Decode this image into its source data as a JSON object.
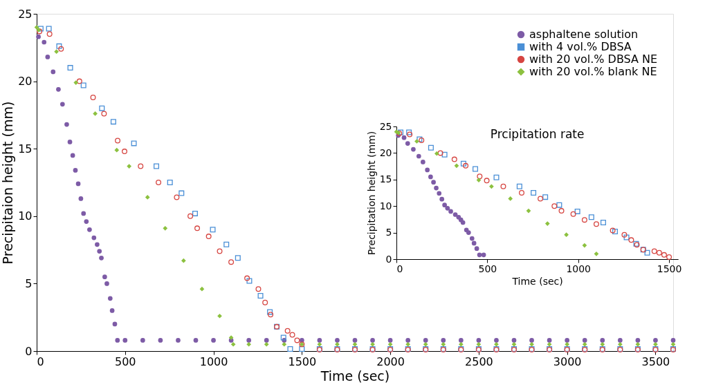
{
  "chart_data": [
    {
      "type": "scatter",
      "xlabel": "Time (sec)",
      "ylabel": "Precipitaion height (mm)",
      "xlim": [
        0,
        3600
      ],
      "ylim": [
        0,
        25
      ],
      "xticks": [
        0,
        500,
        1000,
        1500,
        2000,
        2500,
        3000,
        3500
      ],
      "yticks": [
        0,
        5,
        10,
        15,
        20,
        25
      ],
      "legend": "top right",
      "grid": false,
      "series": [
        {
          "name": "asphaltene solution",
          "color": "#7d5ba6",
          "marker": "circle",
          "x": [
            10,
            42,
            62,
            93,
            123,
            146,
            170,
            188,
            204,
            219,
            235,
            250,
            265,
            281,
            299,
            324,
            342,
            355,
            366,
            385,
            397,
            416,
            427,
            442,
            457,
            500,
            600,
            700,
            800,
            900,
            1000,
            1100,
            1200,
            1300,
            1400,
            1500,
            1600,
            1700,
            1800,
            1900,
            2000,
            2100,
            2200,
            2300,
            2400,
            2500,
            2600,
            2700,
            2800,
            2900,
            3000,
            3100,
            3200,
            3300,
            3400,
            3500,
            3600
          ],
          "values": [
            23.3,
            22.9,
            21.8,
            20.7,
            19.4,
            18.3,
            16.8,
            15.5,
            14.5,
            13.4,
            12.4,
            11.3,
            10.2,
            9.6,
            9.0,
            8.4,
            7.9,
            7.4,
            6.9,
            5.5,
            5.0,
            3.9,
            3.0,
            2.0,
            0.8,
            0.8,
            0.8,
            0.8,
            0.8,
            0.8,
            0.8,
            0.8,
            0.8,
            0.8,
            0.8,
            0.8,
            0.8,
            0.8,
            0.8,
            0.8,
            0.8,
            0.8,
            0.8,
            0.8,
            0.8,
            0.8,
            0.8,
            0.8,
            0.8,
            0.8,
            0.8,
            0.8,
            0.8,
            0.8,
            0.8,
            0.8,
            0.8
          ]
        },
        {
          "name": "with 4 vol.% DBSA",
          "color": "#4a8fd6",
          "marker": "square",
          "x": [
            23,
            69,
            127,
            190,
            265,
            369,
            434,
            550,
            677,
            754,
            819,
            896,
            996,
            1073,
            1138,
            1203,
            1266,
            1319,
            1358,
            1396,
            1434,
            1500,
            1600,
            1700,
            1800,
            1900,
            2000,
            2100,
            2200,
            2300,
            2400,
            2500,
            2600,
            2700,
            2800,
            2900,
            3000,
            3100,
            3200,
            3300,
            3400,
            3500,
            3600
          ],
          "values": [
            23.9,
            23.9,
            22.6,
            21.0,
            19.7,
            18.0,
            17.0,
            15.4,
            13.7,
            12.5,
            11.7,
            10.2,
            9.0,
            7.9,
            6.9,
            5.2,
            4.1,
            2.9,
            1.8,
            1.0,
            0.15,
            0.15,
            0.15,
            0.15,
            0.15,
            0.15,
            0.15,
            0.15,
            0.15,
            0.15,
            0.15,
            0.15,
            0.15,
            0.15,
            0.15,
            0.15,
            0.15,
            0.15,
            0.15,
            0.15,
            0.15,
            0.15,
            0.15
          ]
        },
        {
          "name": "with 20 vol.% DBSA NE",
          "color": "#d64541",
          "marker": "circle",
          "x": [
            16,
            73,
            138,
            242,
            319,
            381,
            458,
            497,
            588,
            689,
            792,
            869,
            908,
            973,
            1035,
            1100,
            1190,
            1254,
            1292,
            1323,
            1358,
            1419,
            1446,
            1473,
            1500,
            1600,
            1700,
            1800,
            1900,
            2000,
            2100,
            2200,
            2300,
            2400,
            2500,
            2600,
            2700,
            2800,
            2900,
            3000,
            3100,
            3200,
            3300,
            3400,
            3500,
            3600
          ],
          "values": [
            23.7,
            23.5,
            22.4,
            20.0,
            18.8,
            17.6,
            15.6,
            14.8,
            13.7,
            12.5,
            11.4,
            10.0,
            9.1,
            8.5,
            7.4,
            6.6,
            5.4,
            4.6,
            3.6,
            2.7,
            1.8,
            1.5,
            1.2,
            0.8,
            0.5,
            0.1,
            0.1,
            0.1,
            0.1,
            0.1,
            0.1,
            0.1,
            0.1,
            0.1,
            0.1,
            0.1,
            0.1,
            0.1,
            0.1,
            0.1,
            0.1,
            0.1,
            0.1,
            0.1,
            0.1,
            0.1
          ]
        },
        {
          "name": "with 20 vol.% blank NE",
          "color": "#8cc13f",
          "marker": "diamond",
          "x": [
            0,
            11,
            112,
            222,
            331,
            453,
            523,
            627,
            727,
            831,
            935,
            1035,
            1100,
            1112,
            1200,
            1300,
            1400,
            1500,
            1600,
            1700,
            1800,
            1900,
            2000,
            2100,
            2200,
            2300,
            2400,
            2500,
            2600,
            2700,
            2800,
            2900,
            3000,
            3100,
            3200,
            3300,
            3400,
            3500,
            3600
          ],
          "values": [
            24.0,
            23.8,
            22.2,
            19.9,
            17.6,
            14.9,
            13.7,
            11.4,
            9.1,
            6.7,
            4.6,
            2.6,
            1.0,
            0.5,
            0.5,
            0.5,
            0.5,
            0.5,
            0.5,
            0.5,
            0.5,
            0.5,
            0.5,
            0.5,
            0.5,
            0.5,
            0.5,
            0.5,
            0.5,
            0.5,
            0.5,
            0.5,
            0.5,
            0.5,
            0.5,
            0.5,
            0.5,
            0.5,
            0.5
          ]
        }
      ]
    },
    {
      "type": "scatter",
      "title": "Prcipitation rate",
      "xlabel": "Time (sec)",
      "ylabel": "Precipitation height (mm)",
      "xlim": [
        0,
        1550
      ],
      "ylim": [
        0,
        25
      ],
      "xticks": [
        0,
        500,
        1000,
        1500
      ],
      "yticks": [
        0,
        5,
        10,
        15,
        20,
        25
      ],
      "grid": false,
      "series": [
        {
          "color": "#7d5ba6",
          "marker": "circle",
          "x": [
            10,
            42,
            62,
            93,
            123,
            146,
            170,
            188,
            204,
            219,
            235,
            250,
            265,
            281,
            299,
            324,
            342,
            355,
            366,
            385,
            397,
            416,
            427,
            442,
            457,
            480
          ],
          "values": [
            23.3,
            22.9,
            21.8,
            20.7,
            19.4,
            18.3,
            16.8,
            15.5,
            14.5,
            13.4,
            12.4,
            11.3,
            10.2,
            9.6,
            9.0,
            8.4,
            7.9,
            7.4,
            6.9,
            5.5,
            5.0,
            3.9,
            3.0,
            2.0,
            0.8,
            0.8
          ]
        },
        {
          "color": "#4a8fd6",
          "marker": "square",
          "x": [
            23,
            69,
            127,
            190,
            265,
            369,
            434,
            550,
            677,
            754,
            819,
            896,
            996,
            1073,
            1138,
            1203,
            1266,
            1319,
            1358,
            1380
          ],
          "values": [
            23.9,
            23.9,
            22.6,
            21.0,
            19.7,
            18.0,
            17.0,
            15.4,
            13.7,
            12.5,
            11.7,
            10.2,
            9.0,
            7.9,
            6.9,
            5.2,
            4.1,
            2.9,
            1.8,
            1.2
          ]
        },
        {
          "color": "#d64541",
          "marker": "circle",
          "x": [
            16,
            73,
            138,
            242,
            319,
            381,
            458,
            497,
            588,
            689,
            792,
            869,
            908,
            973,
            1035,
            1100,
            1190,
            1254,
            1292,
            1323,
            1358,
            1419,
            1446,
            1473,
            1500
          ],
          "values": [
            23.7,
            23.5,
            22.4,
            20.0,
            18.8,
            17.6,
            15.6,
            14.8,
            13.7,
            12.5,
            11.4,
            10.0,
            9.1,
            8.5,
            7.4,
            6.6,
            5.4,
            4.6,
            3.6,
            2.7,
            1.8,
            1.5,
            1.2,
            0.8,
            0.4
          ]
        },
        {
          "color": "#8cc13f",
          "marker": "diamond",
          "x": [
            0,
            11,
            112,
            222,
            331,
            453,
            523,
            627,
            727,
            831,
            935,
            1035,
            1100
          ],
          "values": [
            24.0,
            23.8,
            22.2,
            19.9,
            17.6,
            14.9,
            13.7,
            11.4,
            9.1,
            6.7,
            4.6,
            2.6,
            1.0
          ]
        }
      ]
    }
  ]
}
